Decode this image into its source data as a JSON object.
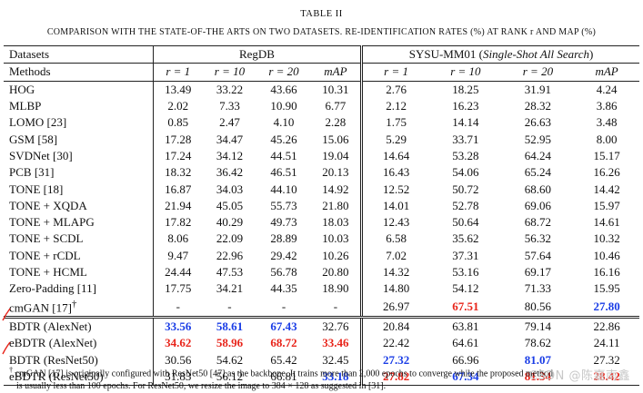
{
  "caption": {
    "number": "TABLE II",
    "title": "COMPARISON WITH THE STATE-OF-THE ARTS ON TWO DATASETS. RE-IDENTIFICATION RATES (%) AT RANK r AND MAP (%)"
  },
  "table": {
    "datasets_label": "Datasets",
    "methods_label": "Methods",
    "dataset1": "RegDB",
    "dataset2_name": "SYSU-MM01 (",
    "dataset2_mode": "Single-Shot All Search",
    "dataset2_close": ")",
    "subheaders": [
      "r = 1",
      "r = 10",
      "r = 20",
      "mAP",
      "r = 1",
      "r = 10",
      "r = 20",
      "mAP"
    ],
    "rows": [
      {
        "method": "HOG",
        "values": [
          "13.49",
          "33.22",
          "43.66",
          "10.31",
          "2.76",
          "18.25",
          "31.91",
          "4.24"
        ]
      },
      {
        "method": "MLBP",
        "values": [
          "2.02",
          "7.33",
          "10.90",
          "6.77",
          "2.12",
          "16.23",
          "28.32",
          "3.86"
        ]
      },
      {
        "method": "LOMO [23]",
        "values": [
          "0.85",
          "2.47",
          "4.10",
          "2.28",
          "1.75",
          "14.14",
          "26.63",
          "3.48"
        ]
      },
      {
        "method": "GSM [58]",
        "values": [
          "17.28",
          "34.47",
          "45.26",
          "15.06",
          "5.29",
          "33.71",
          "52.95",
          "8.00"
        ]
      },
      {
        "method": "SVDNet [30]",
        "values": [
          "17.24",
          "34.12",
          "44.51",
          "19.04",
          "14.64",
          "53.28",
          "64.24",
          "15.17"
        ]
      },
      {
        "method": "PCB [31]",
        "values": [
          "18.32",
          "36.42",
          "46.51",
          "20.13",
          "16.43",
          "54.06",
          "65.24",
          "16.26"
        ]
      },
      {
        "method": "TONE [18]",
        "values": [
          "16.87",
          "34.03",
          "44.10",
          "14.92",
          "12.52",
          "50.72",
          "68.60",
          "14.42"
        ]
      },
      {
        "method": "TONE + XQDA",
        "values": [
          "21.94",
          "45.05",
          "55.73",
          "21.80",
          "14.01",
          "52.78",
          "69.06",
          "15.97"
        ]
      },
      {
        "method": "TONE + MLAPG",
        "values": [
          "17.82",
          "40.29",
          "49.73",
          "18.03",
          "12.43",
          "50.64",
          "68.72",
          "14.61"
        ]
      },
      {
        "method": "TONE + SCDL",
        "values": [
          "8.06",
          "22.09",
          "28.89",
          "10.03",
          "6.58",
          "35.62",
          "56.32",
          "10.32"
        ]
      },
      {
        "method": "TONE + rCDL",
        "values": [
          "9.47",
          "22.96",
          "29.42",
          "10.26",
          "7.02",
          "37.31",
          "57.64",
          "10.46"
        ]
      },
      {
        "method": "TONE + HCML",
        "values": [
          "24.44",
          "47.53",
          "56.78",
          "20.80",
          "14.32",
          "53.16",
          "69.17",
          "16.16"
        ]
      },
      {
        "method": "Zero-Padding [11]",
        "values": [
          "17.75",
          "34.21",
          "44.35",
          "18.90",
          "14.80",
          "54.12",
          "71.33",
          "15.95"
        ]
      },
      {
        "method": "cmGAN [17]",
        "sup": "†",
        "values": [
          "-",
          "-",
          "-",
          "-",
          "26.97",
          "67.51",
          "80.56",
          "27.80"
        ],
        "highlight": [
          null,
          null,
          null,
          null,
          null,
          "red",
          null,
          "blue"
        ]
      },
      {
        "method": "BDTR (AlexNet)",
        "values": [
          "33.56",
          "58.61",
          "67.43",
          "32.76",
          "20.84",
          "63.81",
          "79.14",
          "22.86"
        ],
        "highlight": [
          "blue",
          "blue",
          "blue",
          null,
          null,
          null,
          null,
          null
        ]
      },
      {
        "method": "eBDTR (AlexNet)",
        "values": [
          "34.62",
          "58.96",
          "68.72",
          "33.46",
          "22.42",
          "64.61",
          "78.62",
          "24.11"
        ],
        "highlight": [
          "red",
          "red",
          "red",
          "red",
          null,
          null,
          null,
          null
        ]
      },
      {
        "method": "BDTR (ResNet50)",
        "values": [
          "30.56",
          "54.62",
          "65.42",
          "32.45",
          "27.32",
          "66.96",
          "81.07",
          "27.32"
        ],
        "highlight": [
          null,
          null,
          null,
          null,
          "blue",
          null,
          "blue",
          null
        ]
      },
      {
        "method": "eBDTR (ResNet50)",
        "values": [
          "31.83",
          "56.12",
          "66.81",
          "33.18",
          "27.82",
          "67.34",
          "81.34",
          "28.42"
        ],
        "highlight": [
          null,
          null,
          null,
          "blue",
          "red",
          "blue",
          "red",
          "red"
        ]
      }
    ]
  },
  "footnote": {
    "dagger": "†",
    "line1": "cmGAN [17] is originally configured with ResNet50 [47] as the backbone. It trains more than 2,000 epochs to converge while the proposed method",
    "line2": "is usually less than 100 epochs. For ResNet50, we resize the image to 384 × 128 as suggested in [31]."
  },
  "watermark": "CSDN @陈嘉南鑫",
  "colors": {
    "best": "#e8241a",
    "second": "#1a3de6"
  }
}
